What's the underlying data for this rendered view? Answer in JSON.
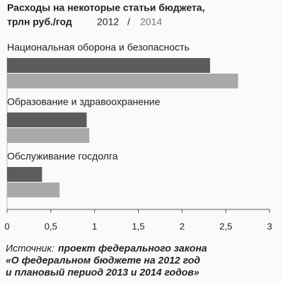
{
  "chart_data": {
    "type": "bar",
    "orientation": "horizontal",
    "title": "Расходы на некоторые статьи бюджета,",
    "subtitle": "трлн руб./год",
    "legend_separator": "/",
    "categories": [
      "Национальная оборона и безопасность",
      "Образование и здравоохранение",
      "Обслуживание госдолга"
    ],
    "series": [
      {
        "name": "2012",
        "color": "#5c5c5c",
        "values": [
          2.32,
          0.91,
          0.4
        ]
      },
      {
        "name": "2014",
        "color": "#a9a9a9",
        "values": [
          2.64,
          0.94,
          0.6
        ]
      }
    ],
    "xlim": [
      0,
      3
    ],
    "xticks": [
      0,
      {
        "value": 0.5,
        "label": "0,5"
      },
      1,
      {
        "value": 1.5,
        "label": "1,5"
      },
      2,
      {
        "value": 2.5,
        "label": "2,5"
      },
      3
    ],
    "source_label": "Источник:",
    "source_lines": [
      "проект федерального закона",
      "«О федеральном бюджете на 2012 год",
      "и плановый период 2013 и 2014 годов»"
    ]
  }
}
